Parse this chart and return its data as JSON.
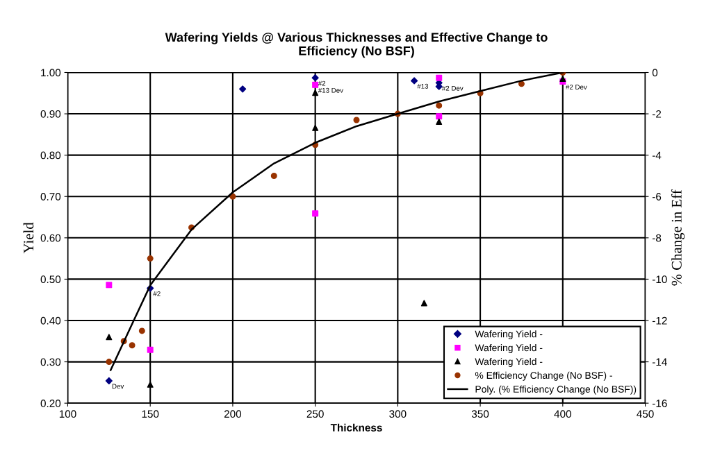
{
  "chart_data": {
    "type": "scatter",
    "title": "Wafering Yields @ Various Thicknesses and Effective Change to\nEfficiency (No BSF)",
    "xlabel": "Thickness",
    "ylabel": "Yield",
    "y2label": "% Change in Eff",
    "xlim": [
      100,
      450
    ],
    "xticks": [
      100,
      150,
      200,
      250,
      300,
      350,
      400,
      450
    ],
    "ylim": [
      0.2,
      1.0
    ],
    "yticks": [
      {
        "value": 0.2,
        "label": "0.20"
      },
      {
        "value": 0.3,
        "label": "0.30"
      },
      {
        "value": 0.4,
        "label": "0.40"
      },
      {
        "value": 0.5,
        "label": "0.50"
      },
      {
        "value": 0.6,
        "label": "0.60"
      },
      {
        "value": 0.7,
        "label": "0.70"
      },
      {
        "value": 0.8,
        "label": "0.80"
      },
      {
        "value": 0.9,
        "label": "0.90"
      },
      {
        "value": 1.0,
        "label": "1.00"
      }
    ],
    "y2lim": [
      -16,
      0
    ],
    "y2ticks": [
      -16,
      -14,
      -12,
      -10,
      -8,
      -6,
      -4,
      -2,
      0
    ],
    "grid": true,
    "legend": "bottom right",
    "series": [
      {
        "name": "Wafering Yield -",
        "color": "#000080",
        "marker": "diamond",
        "x": [
          125,
          150,
          206,
          250,
          310,
          325,
          325
        ],
        "values": [
          0.254,
          0.478,
          0.96,
          0.987,
          0.98,
          0.975,
          0.966
        ]
      },
      {
        "name": "Wafering Yield -",
        "color": "#ff00ff",
        "marker": "square",
        "x": [
          125,
          150,
          250,
          250,
          325,
          325,
          400
        ],
        "values": [
          0.486,
          0.329,
          0.97,
          0.659,
          0.987,
          0.894,
          0.978
        ]
      },
      {
        "name": "Wafering Yield -",
        "color": "#000000",
        "marker": "triangle",
        "x": [
          125,
          150,
          250,
          250,
          325,
          316,
          400
        ],
        "values": [
          0.36,
          0.245,
          0.951,
          0.866,
          0.881,
          0.442,
          0.985
        ]
      },
      {
        "name": "% Efficiency Change (No BSF) -",
        "color": "#993300",
        "marker": "circle",
        "axis": "y2",
        "x": [
          125,
          134,
          139,
          145,
          150,
          175,
          200,
          225,
          250,
          275,
          300,
          325,
          350,
          375,
          400
        ],
        "values": [
          -14.0,
          -13.0,
          -13.2,
          -12.5,
          -9.0,
          -7.5,
          -6.0,
          -5.0,
          -3.5,
          -2.3,
          -2.0,
          -1.6,
          -1.0,
          -0.55,
          0
        ]
      },
      {
        "name": "Poly. (% Efficiency Change (No BSF))",
        "type": "line",
        "color": "#000000",
        "marker": "none",
        "line_style": "solid",
        "axis": "y2",
        "x": [
          126,
          140,
          150,
          175,
          200,
          225,
          250,
          275,
          300,
          325,
          350,
          375,
          400
        ],
        "values": [
          -14.4,
          -12.0,
          -10.3,
          -7.6,
          -5.8,
          -4.4,
          -3.4,
          -2.6,
          -2.0,
          -1.4,
          -0.9,
          -0.4,
          0
        ]
      }
    ],
    "annotations": [
      {
        "text": "Dev",
        "x": 125,
        "y": 0.254
      },
      {
        "text": "#2",
        "x": 150,
        "y": 0.478
      },
      {
        "text": "#2",
        "x": 250,
        "y": 0.987
      },
      {
        "text": "#13 Dev",
        "x": 250,
        "y": 0.97
      },
      {
        "text": "#13",
        "x": 310,
        "y": 0.98
      },
      {
        "text": "#2 Dev",
        "x": 325,
        "y": 0.975
      },
      {
        "text": "#2 Dev",
        "x": 400,
        "y": 0.978
      }
    ]
  }
}
